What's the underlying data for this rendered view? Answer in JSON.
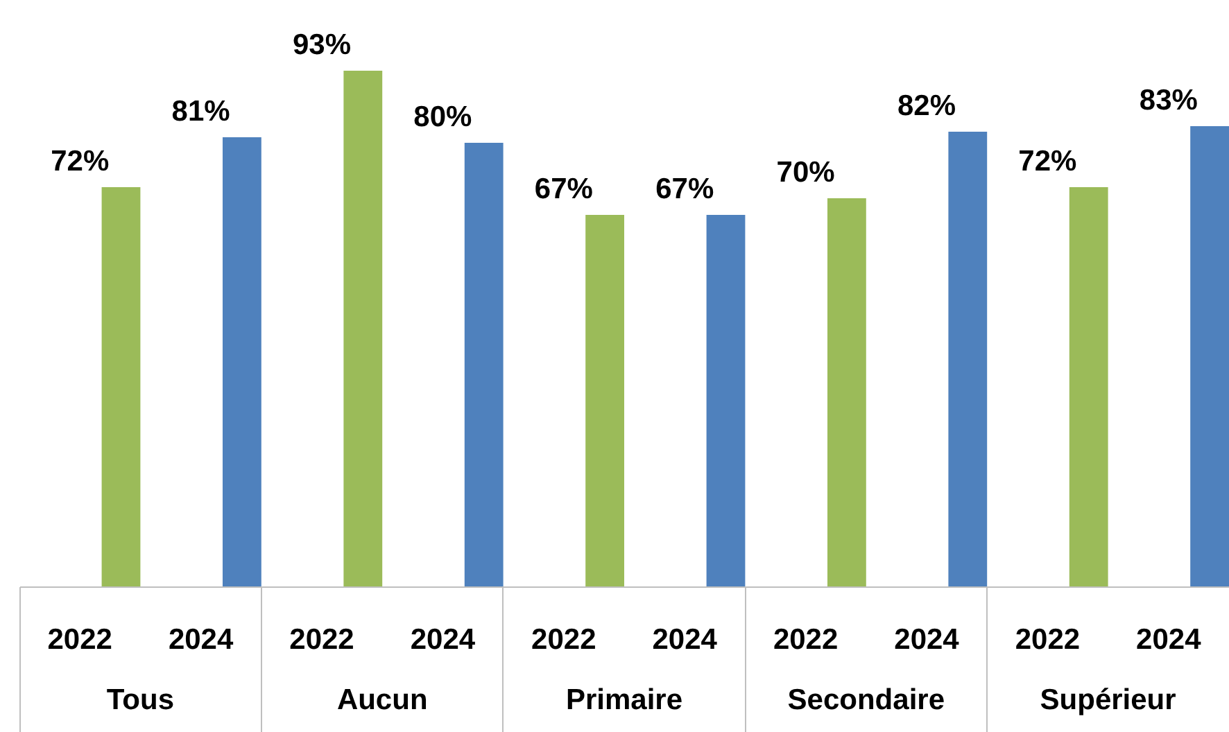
{
  "chart_data": {
    "type": "bar",
    "categories": [
      "Tous",
      "Aucun",
      "Primaire",
      "Secondaire",
      "Supérieur"
    ],
    "series": [
      {
        "name": "2022",
        "color": "#9bbb59",
        "values": [
          72,
          93,
          67,
          70,
          72
        ],
        "value_labels": [
          "72%",
          "93%",
          "67%",
          "70%",
          "72%"
        ]
      },
      {
        "name": "2024",
        "color": "#4f81bd",
        "values": [
          81,
          80,
          67,
          82,
          83
        ],
        "value_labels": [
          "81%",
          "80%",
          "67%",
          "82%",
          "83%"
        ]
      }
    ]
  }
}
